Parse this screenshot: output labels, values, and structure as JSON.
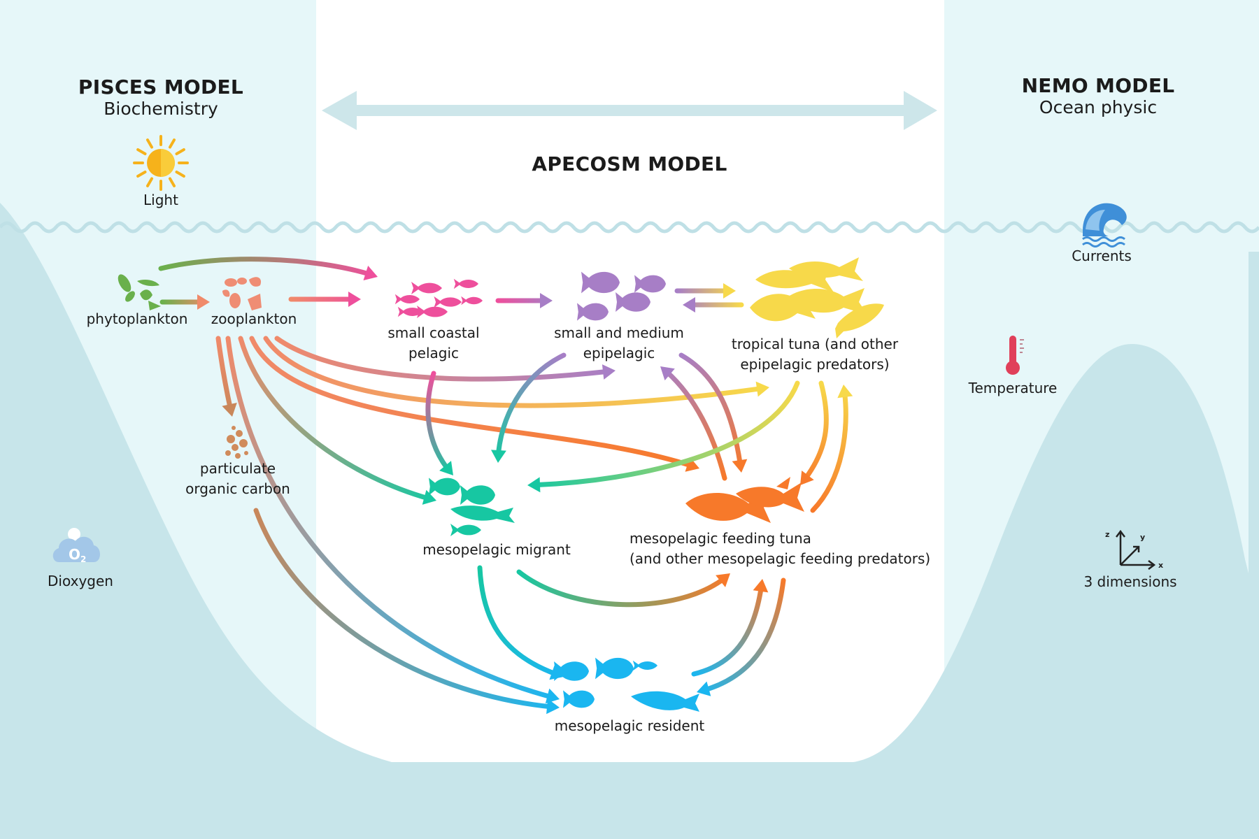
{
  "models": {
    "pisces": {
      "title": "PISCES MODEL",
      "subtitle": "Biochemistry"
    },
    "apecosm": {
      "title": "APECOSM MODEL"
    },
    "nemo": {
      "title": "NEMO MODEL",
      "subtitle": "Ocean physic"
    }
  },
  "drivers": {
    "light": "Light",
    "currents": "Currents",
    "temperature": "Temperature",
    "dioxygen": "Dioxygen",
    "dimensions": "3 dimensions",
    "axes": {
      "x": "x",
      "y": "y",
      "z": "z"
    },
    "o2_symbol": "O",
    "o2_subscript": "2"
  },
  "nodes": {
    "phytoplankton": "phytoplankton",
    "zooplankton": "zooplankton",
    "poc": [
      "particulate",
      "organic carbon"
    ],
    "small_coastal_pelagic": [
      "small coastal",
      "pelagic"
    ],
    "small_medium_epipelagic": [
      "small and medium",
      "epipelagic"
    ],
    "tropical_tuna": [
      "tropical tuna (and other",
      "epipelagic predators)"
    ],
    "mesopelagic_migrant": "mesopelagic migrant",
    "mesopelagic_feeding_tuna": [
      "mesopelagic feeding tuna",
      "(and other mesopelagic feeding predators)"
    ],
    "mesopelagic_resident": "mesopelagic resident"
  },
  "colors": {
    "sea_dark": "#c7e5ea",
    "sea_light": "#e6f7f9",
    "wave": "#bfe0e6",
    "phytoplankton": "#6ab04c",
    "zooplankton": "#f08a6a",
    "poc": "#c9875a",
    "small_coastal_pelagic": "#ee4f9c",
    "small_medium_epipelagic": "#a77ec6",
    "tropical_tuna": "#f7d94a",
    "mesopelagic_migrant": "#17c7a2",
    "mesopelagic_feeding_tuna": "#f7792a",
    "mesopelagic_resident": "#1ab6f0",
    "sun": "#f6b21b",
    "thermometer": "#e0405a",
    "wave_icon": "#3f8fd8",
    "cloud": "#a3c7e8"
  },
  "icons": {
    "light": "sun-icon",
    "currents": "wave-icon",
    "temperature": "thermometer-icon",
    "dioxygen": "o2-cloud-icon",
    "dimensions": "xyz-axes-icon",
    "apecosm_range": "double-arrow-icon"
  },
  "links": [
    [
      "phytoplankton",
      "zooplankton"
    ],
    [
      "phytoplankton",
      "small_coastal_pelagic"
    ],
    [
      "zooplankton",
      "small_coastal_pelagic"
    ],
    [
      "small_coastal_pelagic",
      "small_medium_epipelagic"
    ],
    [
      "small_medium_epipelagic",
      "tropical_tuna"
    ],
    [
      "tropical_tuna",
      "small_medium_epipelagic"
    ],
    [
      "zooplankton",
      "small_medium_epipelagic"
    ],
    [
      "zooplankton",
      "tropical_tuna"
    ],
    [
      "zooplankton",
      "mesopelagic_feeding_tuna"
    ],
    [
      "zooplankton",
      "mesopelagic_migrant"
    ],
    [
      "zooplankton",
      "mesopelagic_resident"
    ],
    [
      "zooplankton",
      "poc"
    ],
    [
      "poc",
      "mesopelagic_resident"
    ],
    [
      "small_coastal_pelagic",
      "mesopelagic_migrant"
    ],
    [
      "small_medium_epipelagic",
      "mesopelagic_migrant"
    ],
    [
      "mesopelagic_feeding_tuna",
      "small_medium_epipelagic"
    ],
    [
      "small_medium_epipelagic",
      "mesopelagic_feeding_tuna"
    ],
    [
      "tropical_tuna",
      "mesopelagic_migrant"
    ],
    [
      "tropical_tuna",
      "mesopelagic_feeding_tuna"
    ],
    [
      "mesopelagic_feeding_tuna",
      "tropical_tuna"
    ],
    [
      "mesopelagic_migrant",
      "mesopelagic_feeding_tuna"
    ],
    [
      "mesopelagic_migrant",
      "mesopelagic_resident"
    ],
    [
      "mesopelagic_resident",
      "mesopelagic_feeding_tuna"
    ],
    [
      "mesopelagic_feeding_tuna",
      "mesopelagic_resident"
    ]
  ]
}
